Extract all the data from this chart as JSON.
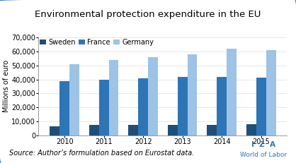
{
  "title": "Environmental protection expenditure in the EU",
  "ylabel": "Millions of euro",
  "source_text": "Source: Author’s formulation based on Eurostat data.",
  "years": [
    2010,
    2011,
    2012,
    2013,
    2014,
    2015
  ],
  "series": {
    "Sweden": [
      6200,
      7500,
      7500,
      7500,
      7500,
      8000
    ],
    "France": [
      38500,
      40000,
      41000,
      42000,
      42000,
      41500
    ],
    "Germany": [
      51000,
      54000,
      56000,
      58000,
      62000,
      61000
    ]
  },
  "colors": {
    "Sweden": "#1f4e79",
    "France": "#2e75b6",
    "Germany": "#9dc3e6"
  },
  "ylim": [
    0,
    70000
  ],
  "yticks": [
    0,
    10000,
    20000,
    30000,
    40000,
    50000,
    60000,
    70000
  ],
  "background_color": "#ffffff",
  "title_fontsize": 9.5,
  "axis_label_fontsize": 7,
  "tick_fontsize": 7,
  "legend_fontsize": 7,
  "source_fontsize": 7,
  "bar_width": 0.25
}
